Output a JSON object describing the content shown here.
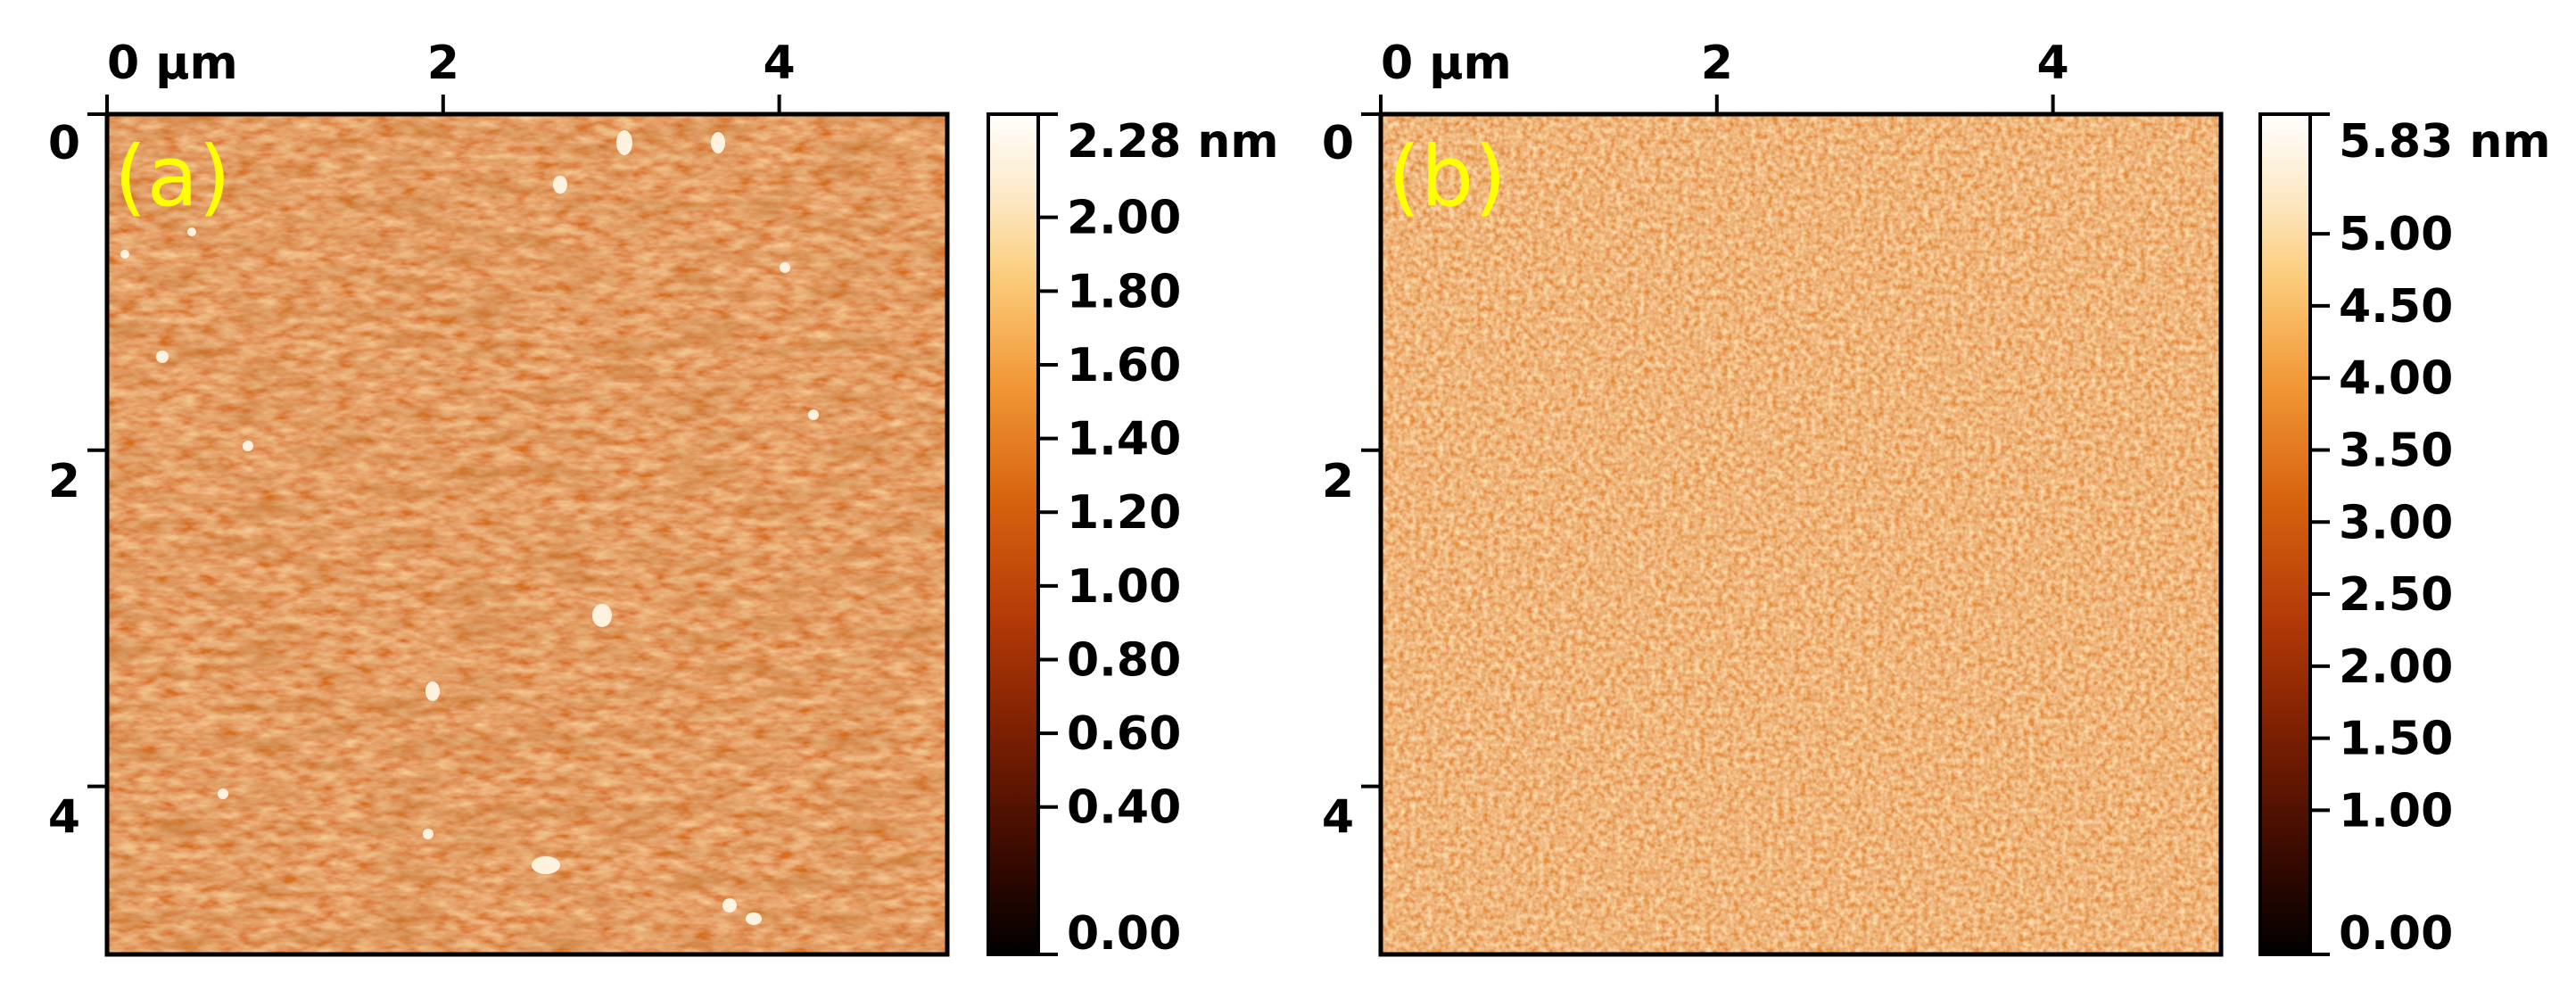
{
  "panels": [
    {
      "id": "a",
      "label": "(a)",
      "x_ticks": [
        "0 µm",
        "2",
        "4"
      ],
      "y_ticks": [
        "0",
        "2",
        "4"
      ],
      "x_tick_values": [
        0,
        2,
        4
      ],
      "y_tick_values": [
        0,
        2,
        4
      ],
      "scan_size_um": 5,
      "colorbar": {
        "range_nm": [
          0,
          2.28
        ],
        "ticks": [
          {
            "value": 2.28,
            "label": "2.28 nm"
          },
          {
            "value": 2.0,
            "label": "2.00"
          },
          {
            "value": 1.8,
            "label": "1.80"
          },
          {
            "value": 1.6,
            "label": "1.60"
          },
          {
            "value": 1.4,
            "label": "1.40"
          },
          {
            "value": 1.2,
            "label": "1.20"
          },
          {
            "value": 1.0,
            "label": "1.00"
          },
          {
            "value": 0.8,
            "label": "0.80"
          },
          {
            "value": 0.6,
            "label": "0.60"
          },
          {
            "value": 0.4,
            "label": "0.40"
          },
          {
            "value": 0.0,
            "label": "0.00"
          }
        ]
      }
    },
    {
      "id": "b",
      "label": "(b)",
      "x_ticks": [
        "0 µm",
        "2",
        "4"
      ],
      "y_ticks": [
        "0",
        "2",
        "4"
      ],
      "x_tick_values": [
        0,
        2,
        4
      ],
      "y_tick_values": [
        0,
        2,
        4
      ],
      "scan_size_um": 5,
      "colorbar": {
        "range_nm": [
          0,
          5.83
        ],
        "ticks": [
          {
            "value": 5.83,
            "label": "5.83 nm"
          },
          {
            "value": 5.0,
            "label": "5.00"
          },
          {
            "value": 4.5,
            "label": "4.50"
          },
          {
            "value": 4.0,
            "label": "4.00"
          },
          {
            "value": 3.5,
            "label": "3.50"
          },
          {
            "value": 3.0,
            "label": "3.00"
          },
          {
            "value": 2.5,
            "label": "2.50"
          },
          {
            "value": 2.0,
            "label": "2.00"
          },
          {
            "value": 1.5,
            "label": "1.50"
          },
          {
            "value": 1.0,
            "label": "1.00"
          },
          {
            "value": 0.0,
            "label": "0.00"
          }
        ]
      }
    }
  ],
  "colors": {
    "label": "#ffff00",
    "cmap": [
      "#000000",
      "#3a0a00",
      "#7a1f02",
      "#b43a08",
      "#d7630f",
      "#f19837",
      "#fbca78",
      "#fde8c4",
      "#ffffff"
    ]
  }
}
